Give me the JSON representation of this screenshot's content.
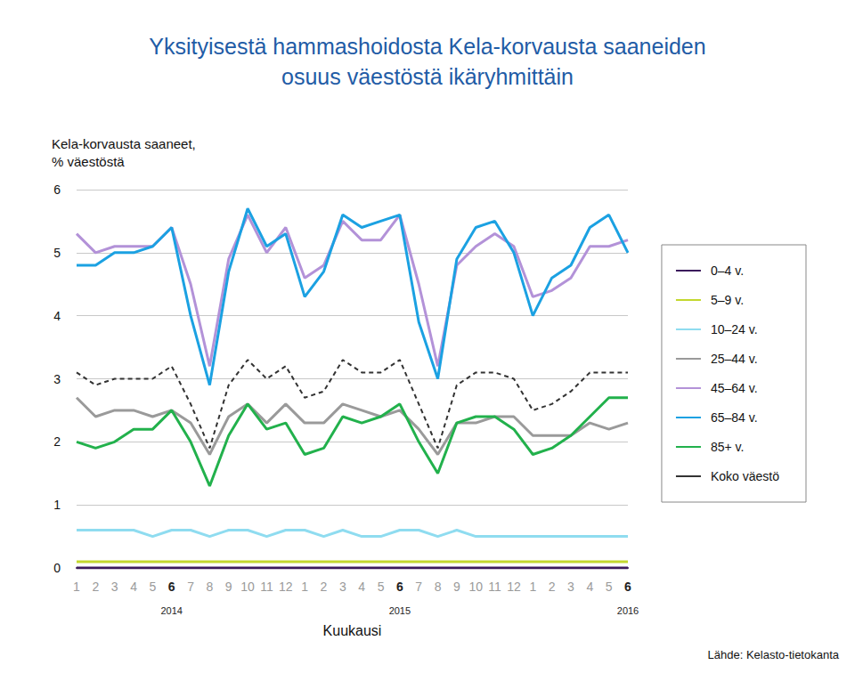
{
  "chart_data": {
    "type": "line",
    "title": "Yksityisestä hammashoidosta Kela-korvausta saaneiden\nosuus väestöstä ikäryhmittäin",
    "y_label": "Kela-korvausta saaneet,\n% väestöstä",
    "x_label": "Kuukausi",
    "source": "Lähde: Kelasto-tietokanta",
    "categories": [
      "1",
      "2",
      "3",
      "4",
      "5",
      "6\n2014",
      "7",
      "8",
      "9",
      "10",
      "11",
      "12",
      "1",
      "2",
      "3",
      "4",
      "5",
      "6\n2015",
      "7",
      "8",
      "9",
      "10",
      "11",
      "12",
      "1",
      "2",
      "3",
      "4",
      "5",
      "6\n2016"
    ],
    "ylim": [
      0,
      6
    ],
    "yticks": [
      0,
      1,
      2,
      3,
      4,
      5,
      6
    ],
    "grid": true,
    "legend": "right",
    "series": [
      {
        "name": "0–4 v.",
        "color": "#3b1b5c",
        "values": [
          0,
          0,
          0,
          0,
          0,
          0,
          0,
          0,
          0,
          0,
          0,
          0,
          0,
          0,
          0,
          0,
          0,
          0,
          0,
          0,
          0,
          0,
          0,
          0,
          0,
          0,
          0,
          0,
          0,
          0
        ]
      },
      {
        "name": "5–9 v.",
        "color": "#c3d82e",
        "values": [
          0.1,
          0.1,
          0.1,
          0.1,
          0.1,
          0.1,
          0.1,
          0.1,
          0.1,
          0.1,
          0.1,
          0.1,
          0.1,
          0.1,
          0.1,
          0.1,
          0.1,
          0.1,
          0.1,
          0.1,
          0.1,
          0.1,
          0.1,
          0.1,
          0.1,
          0.1,
          0.1,
          0.1,
          0.1,
          0.1
        ]
      },
      {
        "name": "10–24 v.",
        "color": "#8fdcf0",
        "values": [
          0.6,
          0.6,
          0.6,
          0.6,
          0.5,
          0.6,
          0.6,
          0.5,
          0.6,
          0.6,
          0.5,
          0.6,
          0.6,
          0.5,
          0.6,
          0.5,
          0.5,
          0.6,
          0.6,
          0.5,
          0.6,
          0.5,
          0.5,
          0.5,
          0.5,
          0.5,
          0.5,
          0.5,
          0.5,
          0.5
        ]
      },
      {
        "name": "25–44 v.",
        "color": "#9a9a9a",
        "values": [
          2.7,
          2.4,
          2.5,
          2.5,
          2.4,
          2.5,
          2.3,
          1.8,
          2.4,
          2.6,
          2.3,
          2.6,
          2.3,
          2.3,
          2.6,
          2.5,
          2.4,
          2.5,
          2.2,
          1.8,
          2.3,
          2.3,
          2.4,
          2.4,
          2.1,
          2.1,
          2.1,
          2.3,
          2.2,
          2.3
        ]
      },
      {
        "name": "45–64 v.",
        "color": "#b392d8",
        "values": [
          5.3,
          5.0,
          5.1,
          5.1,
          5.1,
          5.4,
          4.5,
          3.2,
          4.9,
          5.6,
          5.0,
          5.4,
          4.6,
          4.8,
          5.5,
          5.2,
          5.2,
          5.6,
          4.5,
          3.2,
          4.8,
          5.1,
          5.3,
          5.1,
          4.3,
          4.4,
          4.6,
          5.1,
          5.1,
          5.2
        ]
      },
      {
        "name": "65–84 v.",
        "color": "#1ba1e2",
        "values": [
          4.8,
          4.8,
          5.0,
          5.0,
          5.1,
          5.4,
          4.0,
          2.9,
          4.7,
          5.7,
          5.1,
          5.3,
          4.3,
          4.7,
          5.6,
          5.4,
          5.5,
          5.6,
          3.9,
          3.0,
          4.9,
          5.4,
          5.5,
          5.0,
          4.0,
          4.6,
          4.8,
          5.4,
          5.6,
          5.0
        ]
      },
      {
        "name": "85+ v.",
        "color": "#22b14c",
        "values": [
          2.0,
          1.9,
          2.0,
          2.2,
          2.2,
          2.5,
          2.0,
          1.3,
          2.1,
          2.6,
          2.2,
          2.3,
          1.8,
          1.9,
          2.4,
          2.3,
          2.4,
          2.6,
          2.0,
          1.5,
          2.3,
          2.4,
          2.4,
          2.2,
          1.8,
          1.9,
          2.1,
          2.4,
          2.7,
          2.7
        ]
      },
      {
        "name": "Koko väestö",
        "color": "#333333",
        "line_style": "dashed",
        "values": [
          3.1,
          2.9,
          3.0,
          3.0,
          3.0,
          3.2,
          2.6,
          1.9,
          2.9,
          3.3,
          3.0,
          3.2,
          2.7,
          2.8,
          3.3,
          3.1,
          3.1,
          3.3,
          2.6,
          1.9,
          2.9,
          3.1,
          3.1,
          3.0,
          2.5,
          2.6,
          2.8,
          3.1,
          3.1,
          3.1
        ]
      }
    ]
  }
}
